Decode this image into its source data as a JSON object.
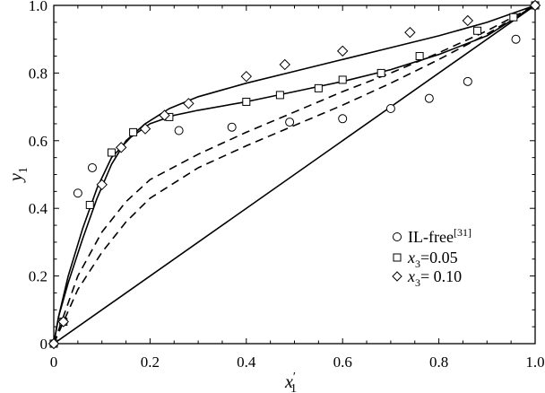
{
  "chart_data": {
    "type": "scatter",
    "xlabel": "x",
    "xlabel_sub": "1",
    "xlabel_prime": "′",
    "ylabel": "y",
    "ylabel_sub": "1",
    "xlim": [
      0,
      1
    ],
    "ylim": [
      0,
      1
    ],
    "xticks": [
      "0",
      "0.2",
      "0.4",
      "0.6",
      "0.8",
      "1.0"
    ],
    "yticks": [
      "0",
      "0.2",
      "0.4",
      "0.6",
      "0.8",
      "1.0"
    ],
    "legend": {
      "placement": "bottom-right",
      "entries": [
        {
          "marker": "circle",
          "label": "IL-free",
          "sup": "[31]"
        },
        {
          "marker": "square",
          "label_var": "x",
          "label_sub": "3",
          "label_rest": "=0.05"
        },
        {
          "marker": "diamond",
          "label_var": "x",
          "label_sub": "3",
          "label_rest": "= 0.10"
        }
      ]
    },
    "series": [
      {
        "marker": "circle",
        "points": [
          [
            0.0,
            0.0
          ],
          [
            0.02,
            0.065
          ],
          [
            0.05,
            0.445
          ],
          [
            0.08,
            0.52
          ],
          [
            0.26,
            0.63
          ],
          [
            0.37,
            0.64
          ],
          [
            0.49,
            0.655
          ],
          [
            0.6,
            0.665
          ],
          [
            0.7,
            0.695
          ],
          [
            0.78,
            0.725
          ],
          [
            0.86,
            0.775
          ],
          [
            0.96,
            0.9
          ],
          [
            1.0,
            1.0
          ]
        ]
      },
      {
        "marker": "square",
        "points": [
          [
            0.0,
            0.0
          ],
          [
            0.02,
            0.065
          ],
          [
            0.075,
            0.41
          ],
          [
            0.12,
            0.565
          ],
          [
            0.165,
            0.625
          ],
          [
            0.24,
            0.67
          ],
          [
            0.4,
            0.715
          ],
          [
            0.47,
            0.735
          ],
          [
            0.55,
            0.755
          ],
          [
            0.6,
            0.78
          ],
          [
            0.68,
            0.8
          ],
          [
            0.76,
            0.85
          ],
          [
            0.88,
            0.925
          ],
          [
            0.955,
            0.965
          ],
          [
            1.0,
            1.0
          ]
        ]
      },
      {
        "marker": "diamond",
        "points": [
          [
            0.0,
            0.0
          ],
          [
            0.02,
            0.065
          ],
          [
            0.1,
            0.47
          ],
          [
            0.14,
            0.58
          ],
          [
            0.19,
            0.635
          ],
          [
            0.23,
            0.675
          ],
          [
            0.28,
            0.71
          ],
          [
            0.4,
            0.79
          ],
          [
            0.48,
            0.825
          ],
          [
            0.6,
            0.865
          ],
          [
            0.74,
            0.92
          ],
          [
            0.86,
            0.955
          ],
          [
            1.0,
            1.0
          ]
        ]
      }
    ],
    "lines": [
      {
        "style": "solid",
        "points": [
          [
            0,
            0
          ],
          [
            0.01,
            0.08
          ],
          [
            0.03,
            0.2
          ],
          [
            0.06,
            0.34
          ],
          [
            0.09,
            0.46
          ],
          [
            0.12,
            0.55
          ],
          [
            0.16,
            0.61
          ],
          [
            0.2,
            0.65
          ],
          [
            0.25,
            0.675
          ],
          [
            0.3,
            0.69
          ],
          [
            0.4,
            0.715
          ],
          [
            0.5,
            0.745
          ],
          [
            0.6,
            0.775
          ],
          [
            0.7,
            0.81
          ],
          [
            0.8,
            0.855
          ],
          [
            0.9,
            0.91
          ],
          [
            1.0,
            1.0
          ]
        ]
      },
      {
        "style": "solid",
        "points": [
          [
            0,
            0
          ],
          [
            0.01,
            0.08
          ],
          [
            0.03,
            0.18
          ],
          [
            0.06,
            0.31
          ],
          [
            0.09,
            0.43
          ],
          [
            0.12,
            0.53
          ],
          [
            0.15,
            0.6
          ],
          [
            0.19,
            0.65
          ],
          [
            0.24,
            0.695
          ],
          [
            0.3,
            0.73
          ],
          [
            0.4,
            0.77
          ],
          [
            0.5,
            0.805
          ],
          [
            0.6,
            0.84
          ],
          [
            0.7,
            0.875
          ],
          [
            0.8,
            0.91
          ],
          [
            0.9,
            0.95
          ],
          [
            1.0,
            1.0
          ]
        ]
      },
      {
        "style": "solid",
        "points": [
          [
            0,
            0
          ],
          [
            1.0,
            1.0
          ]
        ]
      },
      {
        "style": "dashed",
        "points": [
          [
            0,
            0
          ],
          [
            0.05,
            0.2
          ],
          [
            0.1,
            0.33
          ],
          [
            0.15,
            0.42
          ],
          [
            0.2,
            0.485
          ],
          [
            0.3,
            0.56
          ],
          [
            0.4,
            0.625
          ],
          [
            0.5,
            0.685
          ],
          [
            0.6,
            0.745
          ],
          [
            0.7,
            0.8
          ],
          [
            0.8,
            0.86
          ],
          [
            0.9,
            0.925
          ],
          [
            1.0,
            1.0
          ]
        ]
      },
      {
        "style": "dashed",
        "points": [
          [
            0,
            0
          ],
          [
            0.05,
            0.16
          ],
          [
            0.1,
            0.27
          ],
          [
            0.15,
            0.36
          ],
          [
            0.2,
            0.43
          ],
          [
            0.3,
            0.52
          ],
          [
            0.4,
            0.585
          ],
          [
            0.5,
            0.645
          ],
          [
            0.6,
            0.705
          ],
          [
            0.7,
            0.77
          ],
          [
            0.8,
            0.84
          ],
          [
            0.9,
            0.915
          ],
          [
            1.0,
            1.0
          ]
        ]
      }
    ]
  }
}
